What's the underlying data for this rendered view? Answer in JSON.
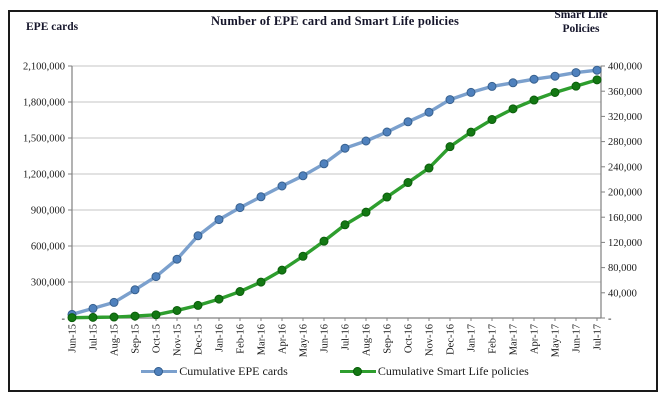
{
  "header": {
    "title": "Number of EPE card and Smart Life policies"
  },
  "chart_data": {
    "type": "line",
    "title": "Number of EPE card and Smart Life policies",
    "zero_label": "-",
    "categories": [
      "Jun-15",
      "Jul-15",
      "Aug-15",
      "Sep-15",
      "Oct-15",
      "Nov-15",
      "Dec-15",
      "Jan-16",
      "Feb-16",
      "Mar-16",
      "Apr-16",
      "May-16",
      "Jun-16",
      "Jul-16",
      "Aug-16",
      "Sep-16",
      "Oct-16",
      "Nov-16",
      "Dec-16",
      "Jan-17",
      "Feb-17",
      "Mar-17",
      "Apr-17",
      "May-17",
      "Jun-17",
      "Jul-17"
    ],
    "left_axis": {
      "title": "EPE cards",
      "min": 0,
      "max": 2100000,
      "step": 300000,
      "tick_labels": [
        "-",
        "300,000",
        "600,000",
        "900,000",
        "1,200,000",
        "1,500,000",
        "1,800,000",
        "2,100,000"
      ]
    },
    "right_axis": {
      "title": "Smart Life\nPolicies",
      "min": 0,
      "max": 400000,
      "step": 40000,
      "tick_labels": [
        "-",
        "40,000",
        "80,000",
        "120,000",
        "160,000",
        "200,000",
        "240,000",
        "280,000",
        "320,000",
        "360,000",
        "400,000"
      ]
    },
    "grid": true,
    "legend_position": "bottom",
    "series": [
      {
        "name": "Cumulative EPE cards",
        "axis": "left",
        "line_color": "#7BA0CD",
        "marker_color": "#4F81BD",
        "marker_edge": "#38618F",
        "values": [
          30000,
          80000,
          130000,
          235000,
          345000,
          490000,
          685000,
          820000,
          920000,
          1010000,
          1100000,
          1185000,
          1285000,
          1415000,
          1475000,
          1550000,
          1635000,
          1715000,
          1820000,
          1880000,
          1930000,
          1960000,
          1990000,
          2015000,
          2045000,
          2065000
        ]
      },
      {
        "name": "Cumulative Smart Life policies",
        "axis": "right",
        "line_color": "#2E9E2E",
        "marker_color": "#137813",
        "marker_edge": "#0B5E0B",
        "values": [
          500,
          1000,
          1500,
          3000,
          5000,
          12000,
          20000,
          30000,
          42000,
          57000,
          76000,
          98000,
          122000,
          148000,
          168000,
          192000,
          215000,
          238000,
          272000,
          295000,
          315000,
          332000,
          346000,
          358000,
          368000,
          378000
        ]
      }
    ]
  }
}
